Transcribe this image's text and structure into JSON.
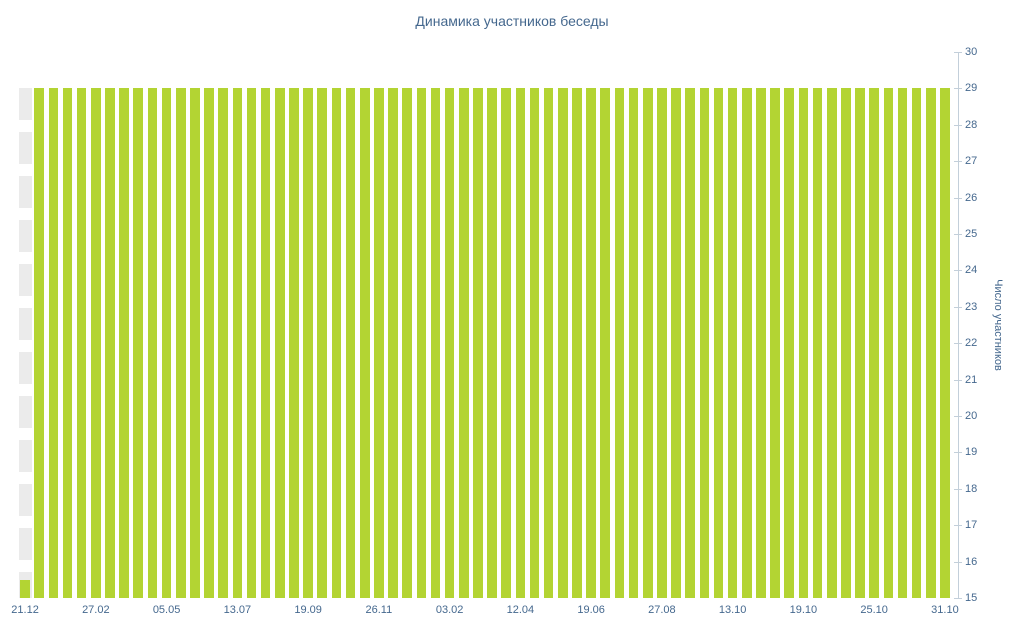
{
  "chart_data": {
    "type": "bar",
    "title": "Динамика участников беседы",
    "xlabel": "",
    "ylabel": "Число участников",
    "ylim": [
      15,
      30
    ],
    "y_ticks": [
      15,
      16,
      17,
      18,
      19,
      20,
      21,
      22,
      23,
      24,
      25,
      26,
      27,
      28,
      29,
      30
    ],
    "x_tick_labels": [
      "21.12",
      "27.02",
      "05.05",
      "13.07",
      "19.09",
      "26.11",
      "03.02",
      "12.04",
      "19.06",
      "27.08",
      "13.10",
      "19.10",
      "25.10",
      "31.10"
    ],
    "x_tick_interval": 5,
    "values": [
      15.5,
      29,
      29,
      29,
      29,
      29,
      29,
      29,
      29,
      29,
      29,
      29,
      29,
      29,
      29,
      29,
      29,
      29,
      29,
      29,
      29,
      29,
      29,
      29,
      29,
      29,
      29,
      29,
      29,
      29,
      29,
      29,
      29,
      29,
      29,
      29,
      29,
      29,
      29,
      29,
      29,
      29,
      29,
      29,
      29,
      29,
      29,
      29,
      29,
      29,
      29,
      29,
      29,
      29,
      29,
      29,
      29,
      29,
      29,
      29,
      29,
      29,
      29,
      29,
      29,
      29
    ],
    "ghost_bar": {
      "index": 0,
      "top_value": 29,
      "color": "#ebebeb"
    },
    "legend": "off",
    "grid": "off",
    "colors": {
      "bar": "#b3d433",
      "title": "#45688e",
      "tick_label": "#45688e",
      "axis": "#c3cfda"
    }
  }
}
